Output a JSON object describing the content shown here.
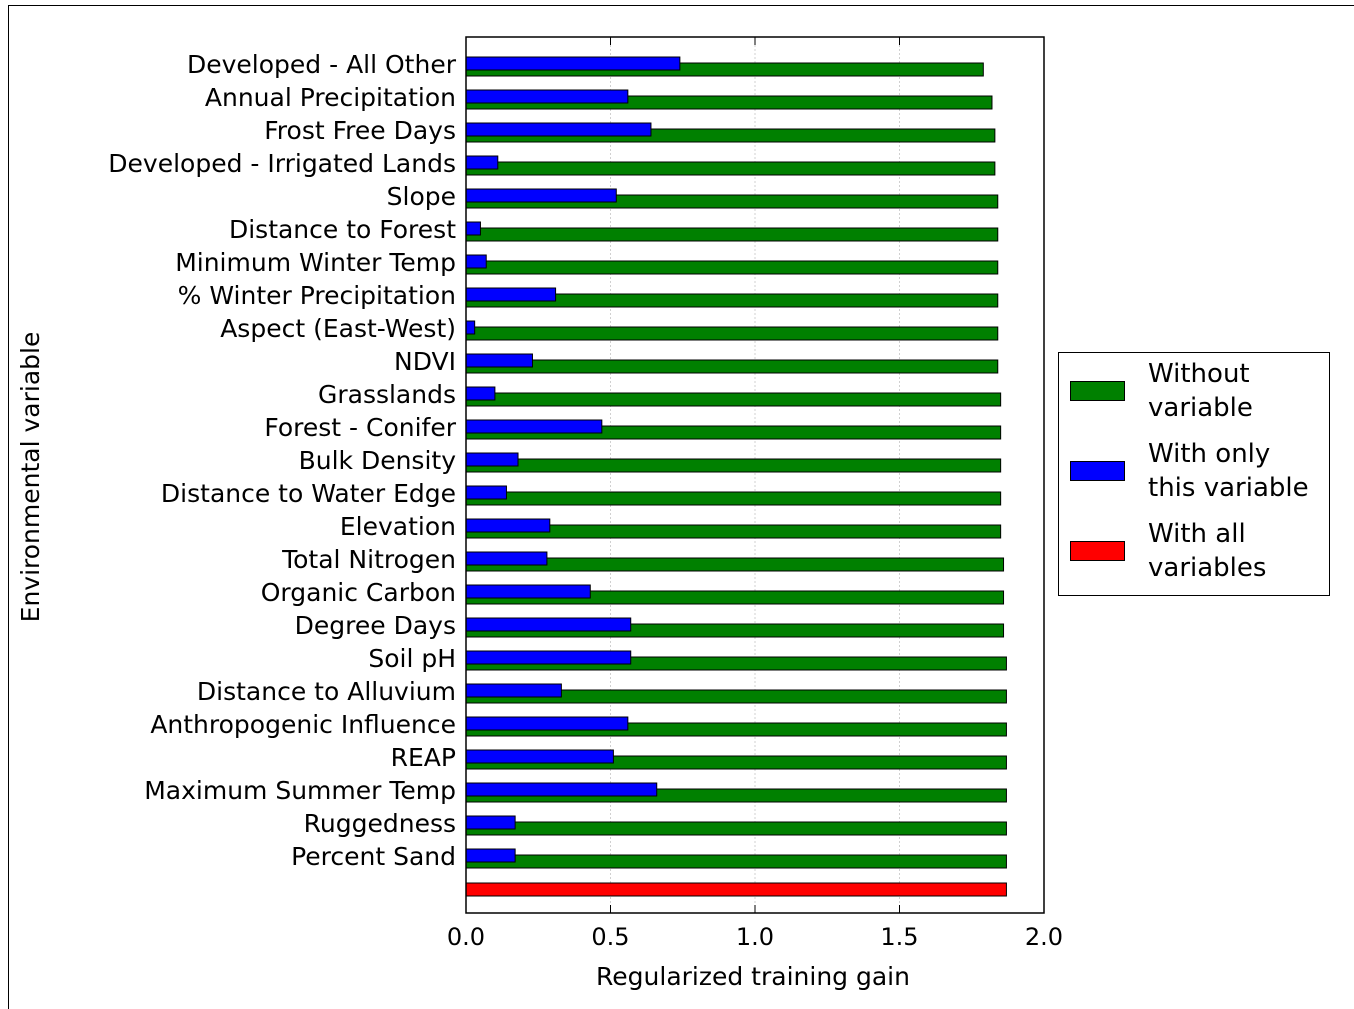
{
  "chart_data": {
    "type": "bar",
    "orientation": "horizontal",
    "xlabel": "Regularized training gain",
    "ylabel": "Environmental variable",
    "categories": [
      "Developed - All Other",
      "Annual Precipitation",
      "Frost Free Days",
      "Developed - Irrigated Lands",
      "Slope",
      "Distance to Forest",
      "Minimum Winter Temp",
      "% Winter Precipitation",
      "Aspect (East-West)",
      "NDVI",
      "Grasslands",
      "Forest - Conifer",
      "Bulk Density",
      "Distance to Water Edge",
      "Elevation",
      "Total Nitrogen",
      "Organic Carbon",
      "Degree Days",
      "Soil pH",
      "Distance to Alluvium",
      "Anthropogenic Influence",
      "REAP",
      "Maximum Summer Temp",
      "Ruggedness",
      "Percent Sand",
      null
    ],
    "series": [
      {
        "name": "Without\nvariable",
        "color": "#008000",
        "values": [
          1.79,
          1.82,
          1.83,
          1.83,
          1.84,
          1.84,
          1.84,
          1.84,
          1.84,
          1.84,
          1.85,
          1.85,
          1.85,
          1.85,
          1.85,
          1.86,
          1.86,
          1.86,
          1.87,
          1.87,
          1.87,
          1.87,
          1.87,
          1.87,
          1.87,
          null
        ]
      },
      {
        "name": "With only\nthis variable",
        "color": "#0000ff",
        "values": [
          0.74,
          0.56,
          0.64,
          0.11,
          0.52,
          0.05,
          0.07,
          0.31,
          0.03,
          0.23,
          0.1,
          0.47,
          0.18,
          0.14,
          0.29,
          0.28,
          0.43,
          0.57,
          0.57,
          0.33,
          0.56,
          0.51,
          0.66,
          0.17,
          0.17,
          null
        ]
      },
      {
        "name": "With all\nvariables",
        "color": "#ff0000",
        "values": [
          null,
          null,
          null,
          null,
          null,
          null,
          null,
          null,
          null,
          null,
          null,
          null,
          null,
          null,
          null,
          null,
          null,
          null,
          null,
          null,
          null,
          null,
          null,
          null,
          null,
          1.87
        ]
      }
    ],
    "xlim": [
      0,
      2
    ],
    "xticks": [
      {
        "value": 0,
        "label": "0.0"
      },
      0.5,
      {
        "value": 1,
        "label": "1.0"
      },
      1.5,
      {
        "value": 2,
        "label": "2.0"
      }
    ],
    "grid": true,
    "legend_position": "right"
  }
}
